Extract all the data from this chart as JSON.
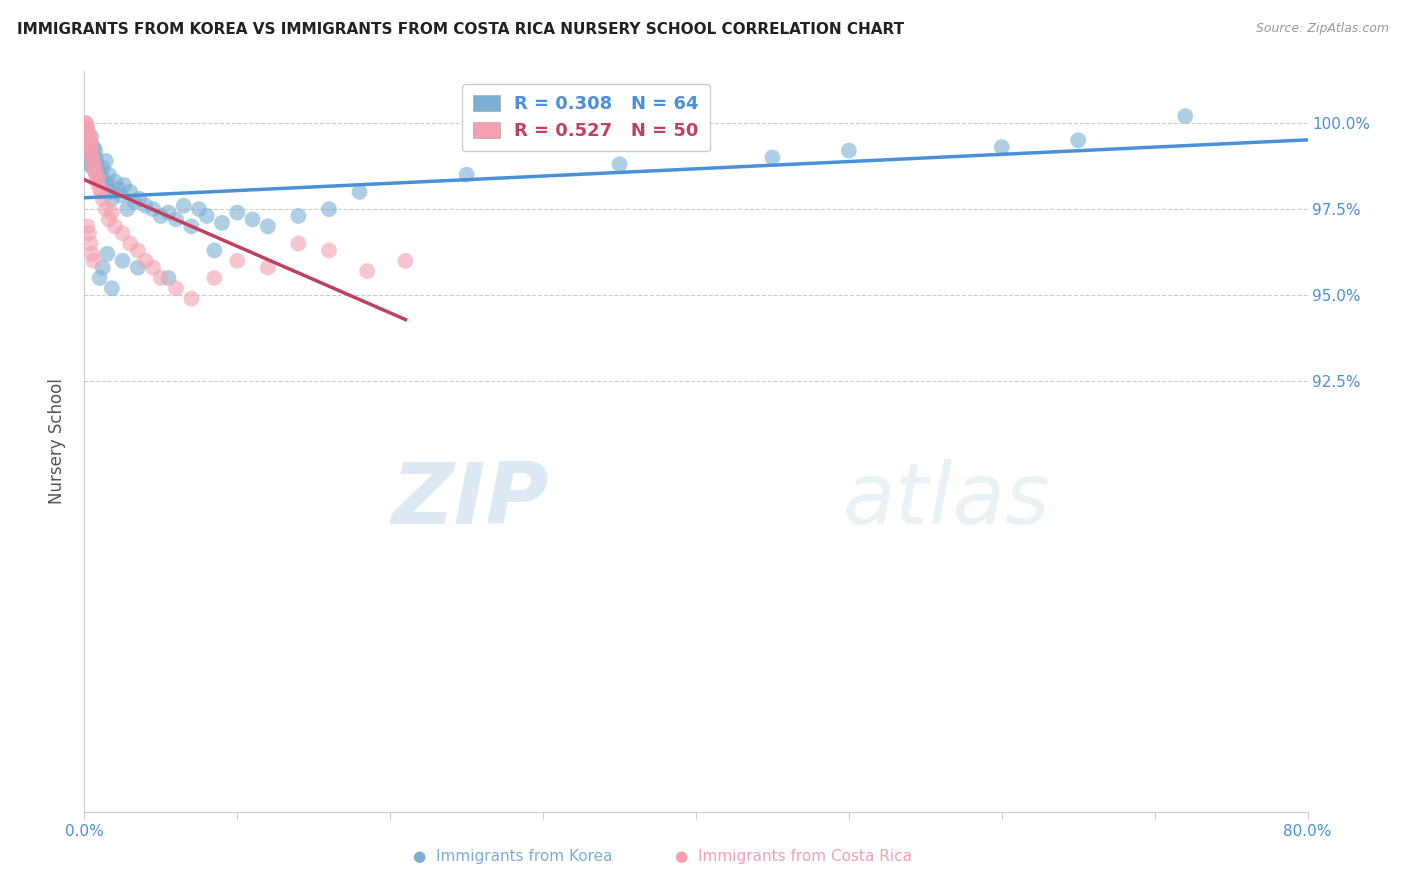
{
  "title": "IMMIGRANTS FROM KOREA VS IMMIGRANTS FROM COSTA RICA NURSERY SCHOOL CORRELATION CHART",
  "source": "Source: ZipAtlas.com",
  "ylabel": "Nursery School",
  "xlim": [
    0.0,
    80.0
  ],
  "ylim": [
    80.0,
    101.5
  ],
  "background_color": "#ffffff",
  "korea_color": "#7bafd4",
  "costa_rica_color": "#f4a0b0",
  "korea_line_color": "#4a90d9",
  "costa_rica_line_color": "#c04060",
  "legend_korea_label": "R = 0.308   N = 64",
  "legend_costa_rica_label": "R = 0.527   N = 50",
  "watermark_zip": "ZIP",
  "watermark_atlas": "atlas",
  "korea_x": [
    0.1,
    0.15,
    0.2,
    0.25,
    0.3,
    0.35,
    0.4,
    0.45,
    0.5,
    0.55,
    0.6,
    0.65,
    0.7,
    0.75,
    0.8,
    0.9,
    1.0,
    1.1,
    1.2,
    1.3,
    1.4,
    1.5,
    1.6,
    1.7,
    1.8,
    2.0,
    2.2,
    2.4,
    2.6,
    2.8,
    3.0,
    3.3,
    3.6,
    4.0,
    4.5,
    5.0,
    5.5,
    6.0,
    6.5,
    7.0,
    7.5,
    8.0,
    9.0,
    10.0,
    11.0,
    12.0,
    14.0,
    16.0,
    1.0,
    1.2,
    1.5,
    1.8,
    2.5,
    3.5,
    5.5,
    8.5,
    18.0,
    25.0,
    35.0,
    45.0,
    50.0,
    60.0,
    65.0,
    72.0
  ],
  "korea_y": [
    99.0,
    99.3,
    99.5,
    99.2,
    99.4,
    98.8,
    99.1,
    99.6,
    99.0,
    98.7,
    99.3,
    98.9,
    99.2,
    99.0,
    98.8,
    98.5,
    98.6,
    98.4,
    98.7,
    98.3,
    98.9,
    98.2,
    98.5,
    98.0,
    97.8,
    98.3,
    98.1,
    97.9,
    98.2,
    97.5,
    98.0,
    97.7,
    97.8,
    97.6,
    97.5,
    97.3,
    97.4,
    97.2,
    97.6,
    97.0,
    97.5,
    97.3,
    97.1,
    97.4,
    97.2,
    97.0,
    97.3,
    97.5,
    95.5,
    95.8,
    96.2,
    95.2,
    96.0,
    95.8,
    95.5,
    96.3,
    98.0,
    98.5,
    98.8,
    99.0,
    99.2,
    99.3,
    99.5,
    100.2
  ],
  "costa_rica_x": [
    0.05,
    0.1,
    0.12,
    0.15,
    0.18,
    0.2,
    0.22,
    0.25,
    0.28,
    0.3,
    0.33,
    0.36,
    0.4,
    0.43,
    0.46,
    0.5,
    0.55,
    0.6,
    0.65,
    0.7,
    0.75,
    0.8,
    0.9,
    1.0,
    1.1,
    1.2,
    1.4,
    1.6,
    1.8,
    2.0,
    2.5,
    3.0,
    3.5,
    4.0,
    4.5,
    5.0,
    6.0,
    7.0,
    8.5,
    10.0,
    12.0,
    14.0,
    16.0,
    18.5,
    21.0,
    0.2,
    0.3,
    0.4,
    0.5,
    0.6
  ],
  "costa_rica_y": [
    100.0,
    99.8,
    100.0,
    99.9,
    99.7,
    99.8,
    99.6,
    99.5,
    99.7,
    99.4,
    99.3,
    99.5,
    99.2,
    99.4,
    99.1,
    99.0,
    98.9,
    98.7,
    98.8,
    98.6,
    98.5,
    98.3,
    98.4,
    98.1,
    98.0,
    97.8,
    97.5,
    97.2,
    97.4,
    97.0,
    96.8,
    96.5,
    96.3,
    96.0,
    95.8,
    95.5,
    95.2,
    94.9,
    95.5,
    96.0,
    95.8,
    96.5,
    96.3,
    95.7,
    96.0,
    97.0,
    96.8,
    96.5,
    96.2,
    96.0
  ]
}
